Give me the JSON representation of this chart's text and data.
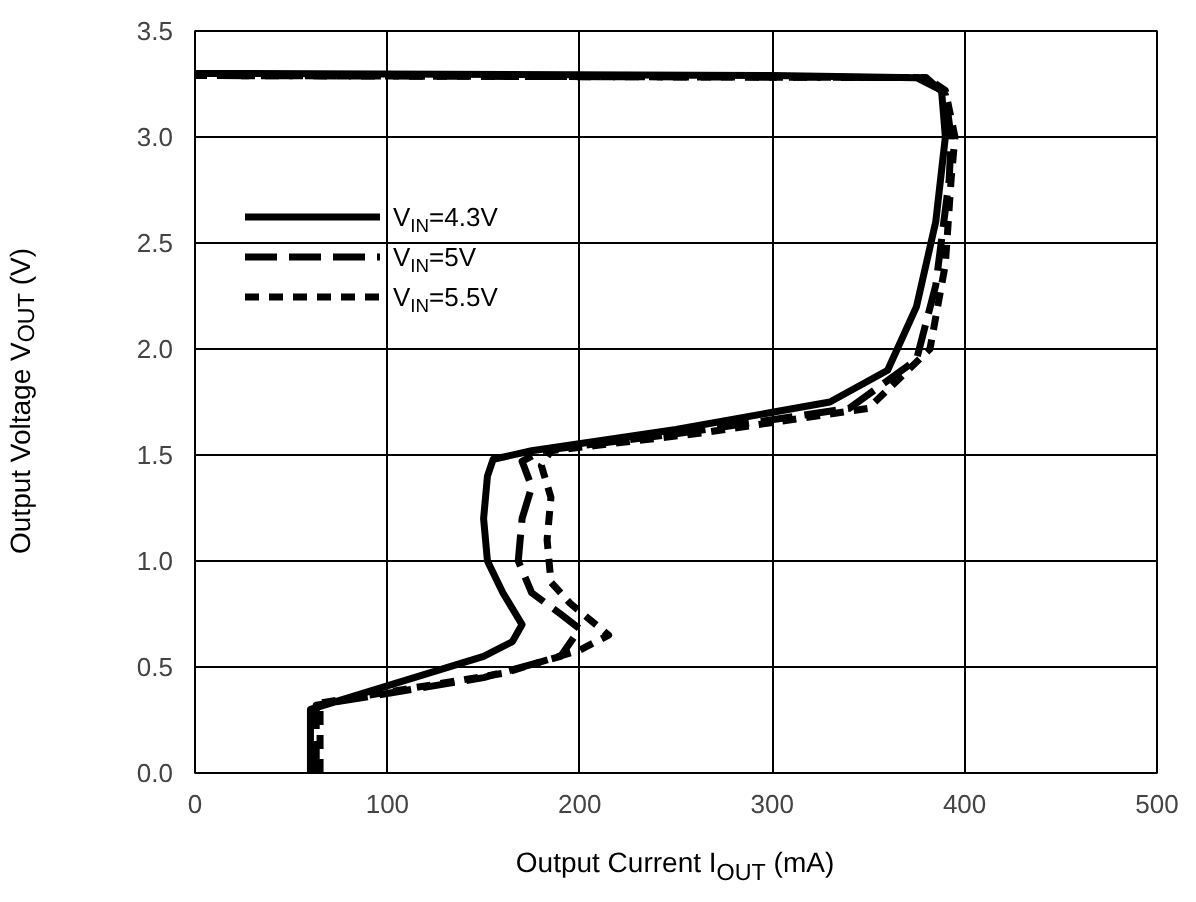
{
  "chart_data": {
    "type": "line",
    "xlabel": "Output Current I$_{OUT}$ (mA)",
    "ylabel": "Output Voltage V$_{OUT}$ (V)",
    "xlim": [
      0,
      500
    ],
    "ylim": [
      0,
      3.5
    ],
    "xticks": [
      0,
      100,
      200,
      300,
      400,
      500
    ],
    "yticks": [
      {
        "value": 0,
        "label": "0.0"
      },
      0.5,
      {
        "value": 1,
        "label": "1.0"
      },
      1.5,
      {
        "value": 2,
        "label": "2.0"
      },
      2.5,
      {
        "value": 3,
        "label": "3.0"
      },
      3.5
    ],
    "grid": true,
    "legend": "top left",
    "series": [
      {
        "name": "V$_{IN}$=4.3V",
        "color": "#000000",
        "line_style": "solid",
        "x": [
          60,
          60,
          150,
          165,
          170,
          160,
          152,
          150,
          152,
          155,
          175,
          250,
          330,
          360,
          375,
          385,
          390,
          388,
          375,
          300,
          0
        ],
        "values": [
          0,
          0.3,
          0.55,
          0.62,
          0.7,
          0.85,
          1.0,
          1.2,
          1.4,
          1.48,
          1.52,
          1.62,
          1.75,
          1.9,
          2.2,
          2.6,
          3.0,
          3.22,
          3.28,
          3.29,
          3.3
        ]
      },
      {
        "name": "V$_{IN}$=5V",
        "color": "#000000",
        "line_style": "dashed",
        "x": [
          63,
          63,
          150,
          190,
          200,
          190,
          175,
          168,
          170,
          175,
          170,
          180,
          250,
          340,
          375,
          385,
          392,
          393,
          390,
          380,
          0
        ],
        "values": [
          0,
          0.32,
          0.45,
          0.55,
          0.68,
          0.75,
          0.85,
          1.0,
          1.2,
          1.35,
          1.47,
          1.52,
          1.6,
          1.72,
          1.95,
          2.3,
          2.8,
          3.0,
          3.2,
          3.28,
          3.29
        ]
      },
      {
        "name": "V$_{IN}$=5.5V",
        "color": "#000000",
        "line_style": "dotted",
        "x": [
          65,
          65,
          160,
          200,
          215,
          195,
          185,
          183,
          185,
          180,
          185,
          260,
          350,
          382,
          390,
          393,
          395,
          390,
          380,
          0
        ],
        "values": [
          0,
          0.33,
          0.47,
          0.58,
          0.65,
          0.8,
          0.9,
          1.1,
          1.3,
          1.45,
          1.52,
          1.6,
          1.72,
          2.0,
          2.4,
          2.8,
          3.0,
          3.22,
          3.28,
          3.29
        ]
      }
    ]
  }
}
